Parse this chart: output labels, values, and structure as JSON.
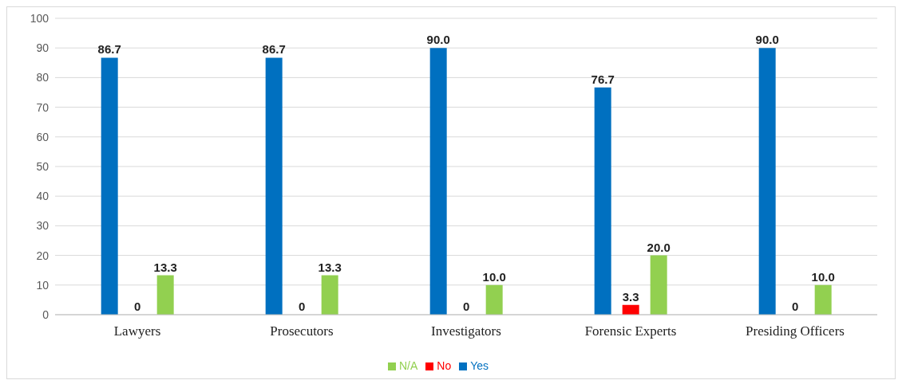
{
  "chart_data": {
    "type": "bar",
    "categories": [
      "Lawyers",
      "Prosecutors",
      "Investigators",
      "Forensic Experts",
      "Presiding Officers"
    ],
    "series": [
      {
        "name": "Yes",
        "color": "#0070c0",
        "values": [
          86.7,
          86.7,
          90.0,
          76.7,
          90.0
        ],
        "value_labels": [
          "86.7",
          "86.7",
          "90.0",
          "76.7",
          "90.0"
        ]
      },
      {
        "name": "No",
        "color": "#ff0000",
        "values": [
          0,
          0,
          0,
          3.3,
          0
        ],
        "value_labels": [
          "0",
          "0",
          "0",
          "3.3",
          "0"
        ]
      },
      {
        "name": "N/A",
        "color": "#92d050",
        "values": [
          13.3,
          13.3,
          10.0,
          20.0,
          10.0
        ],
        "value_labels": [
          "13.3",
          "13.3",
          "10.0",
          "20.0",
          "10.0"
        ]
      }
    ],
    "ylim": [
      0,
      100
    ],
    "yticks": [
      0,
      10,
      20,
      30,
      40,
      50,
      60,
      70,
      80,
      90,
      100
    ],
    "grid": "y",
    "legend": "bottom"
  }
}
